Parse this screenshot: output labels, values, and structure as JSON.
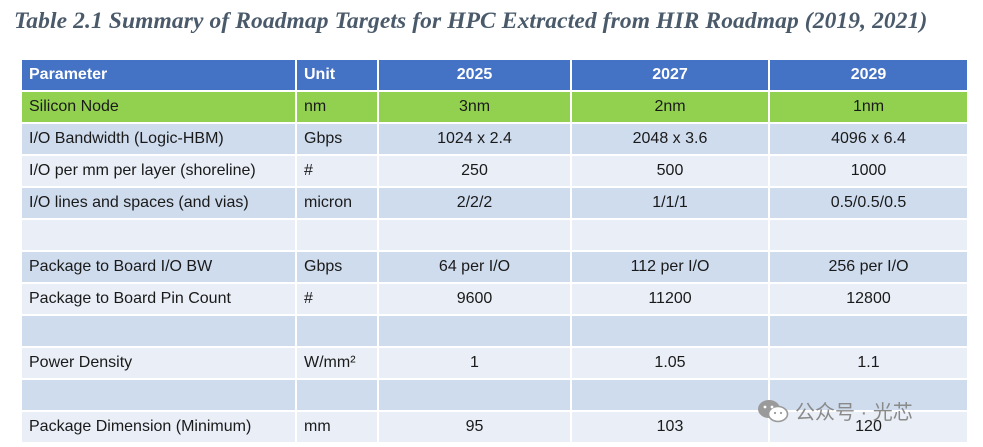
{
  "caption": "Table 2.1 Summary of Roadmap Targets for HPC Extracted from HIR Roadmap (2019, 2021)",
  "table": {
    "headers": [
      "Parameter",
      "Unit",
      "2025",
      "2027",
      "2029"
    ],
    "rows": [
      [
        "Silicon Node",
        "nm",
        "3nm",
        "2nm",
        "1nm"
      ],
      [
        "I/O Bandwidth (Logic-HBM)",
        "Gbps",
        "1024 x 2.4",
        "2048 x 3.6",
        "4096 x 6.4"
      ],
      [
        "I/O per mm per layer (shoreline)",
        "#",
        "250",
        "500",
        "1000"
      ],
      [
        "I/O lines and spaces (and vias)",
        "micron",
        "2/2/2",
        "1/1/1",
        "0.5/0.5/0.5"
      ],
      [
        "",
        "",
        "",
        "",
        ""
      ],
      [
        "Package to Board I/O BW",
        "Gbps",
        "64 per I/O",
        "112 per I/O",
        "256 per I/O"
      ],
      [
        "Package to Board Pin Count",
        "#",
        "9600",
        "11200",
        "12800"
      ],
      [
        "",
        "",
        "",
        "",
        ""
      ],
      [
        "Power Density",
        "W/mm²",
        "1",
        "1.05",
        "1.1"
      ],
      [
        "",
        "",
        "",
        "",
        ""
      ],
      [
        "Package Dimension (Minimum)",
        "mm",
        "95",
        "103",
        "120"
      ]
    ]
  },
  "watermark": {
    "text": "公众号 · 光芯",
    "icon": "wechat-icon"
  }
}
